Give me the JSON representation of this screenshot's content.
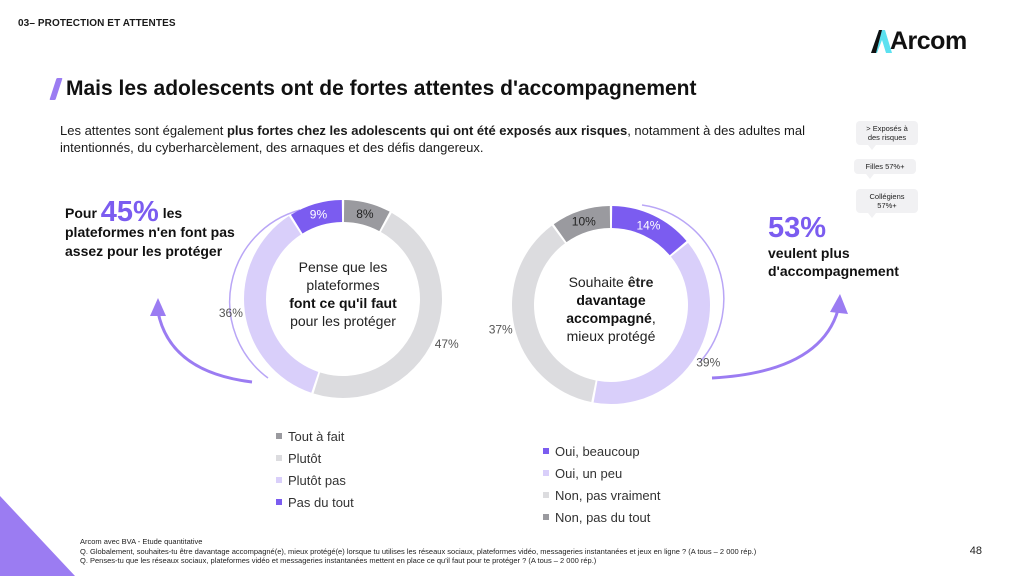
{
  "section_label": "03– PROTECTION ET ATTENTES",
  "logo_text": "Arcom",
  "title": "Mais les adolescents ont de fortes attentes d'accompagnement",
  "intro": {
    "part1": "Les attentes sont également ",
    "bold": "plus fortes chez les adolescents qui ont été exposés aux risques",
    "part2": ", notamment à des adultes mal intentionnés, du cyberharcèlement, des arnaques et des défis dangereux."
  },
  "bubbles": [
    {
      "line1": "> Exposés à",
      "line2": "des risques"
    },
    {
      "line1": "Filles 57%+",
      "line2": ""
    },
    {
      "line1": "Collégiens",
      "line2": "57%+"
    }
  ],
  "left_callout": {
    "prefix": "Pour ",
    "big": "45%",
    "suffix": " les plateformes n'en font pas assez pour les protéger"
  },
  "right_callout": {
    "big": "53%",
    "text": "veulent plus d'accompagnement"
  },
  "colors": {
    "dark_purple": "#7b5cf0",
    "light_purple": "#d9cffa",
    "dark_gray": "#9a9a9f",
    "light_gray": "#dcdcdf",
    "arrow": "#9b7cf2"
  },
  "chart_data": [
    {
      "type": "pie",
      "variant": "donut",
      "question": "Q. Penses-tu que les réseaux sociaux, plateformes vidéo et messageries instantanées mettent en place ce qu'il faut pour te protéger ?",
      "center": {
        "line1": "Pense que les",
        "line2": "plateformes",
        "bold": "font ce qu'il faut",
        "line4": "pour les protéger"
      },
      "slices": [
        {
          "label": "Tout à fait",
          "value": 8,
          "display": "8%",
          "color": "#9a9a9f",
          "label_side": "inside"
        },
        {
          "label": "Plutôt",
          "value": 47,
          "display": "47%",
          "color": "#dcdcdf",
          "label_side": "outside"
        },
        {
          "label": "Plutôt pas",
          "value": 36,
          "display": "36%",
          "color": "#d9cffa",
          "label_side": "outside"
        },
        {
          "label": "Pas du tout",
          "value": 9,
          "display": "9%",
          "color": "#7b5cf0",
          "label_side": "inside"
        }
      ],
      "legend": [
        {
          "label": "Tout à fait",
          "color": "#9a9a9f"
        },
        {
          "label": "Plutôt",
          "color": "#dcdcdf"
        },
        {
          "label": "Plutôt pas",
          "color": "#d9cffa"
        },
        {
          "label": "Pas du tout",
          "color": "#7b5cf0"
        }
      ]
    },
    {
      "type": "pie",
      "variant": "donut",
      "question": "Q. Globalement, souhaites-tu être davantage accompagné(e), mieux protégé(e) lorsque tu utilises les réseaux sociaux ?",
      "center": {
        "line1": "Souhaite ",
        "bold1": "être",
        "bold2": "davantage",
        "bold3": "accompagné",
        "line4": "mieux protégé"
      },
      "slices": [
        {
          "label": "Oui, beaucoup",
          "value": 14,
          "display": "14%",
          "color": "#7b5cf0",
          "label_side": "inside"
        },
        {
          "label": "Oui, un peu",
          "value": 39,
          "display": "39%",
          "color": "#d9cffa",
          "label_side": "outside"
        },
        {
          "label": "Non, pas vraiment",
          "value": 37,
          "display": "37%",
          "color": "#dcdcdf",
          "label_side": "outside"
        },
        {
          "label": "Non, pas du tout",
          "value": 10,
          "display": "10%",
          "color": "#9a9a9f",
          "label_side": "inside"
        }
      ],
      "legend": [
        {
          "label": "Oui, beaucoup",
          "color": "#7b5cf0"
        },
        {
          "label": "Oui, un peu",
          "color": "#d9cffa"
        },
        {
          "label": "Non, pas vraiment",
          "color": "#dcdcdf"
        },
        {
          "label": "Non, pas du tout",
          "color": "#9a9a9f"
        }
      ]
    }
  ],
  "source": {
    "line1": "Arcom avec BVA - Etude quantitative",
    "line2": "Q. Globalement, souhaites-tu être davantage accompagné(e), mieux protégé(e) lorsque tu utilises les réseaux sociaux, plateformes vidéo, messageries instantanées et jeux en ligne ? (A tous – 2 000 rép.)",
    "line3": "Q. Penses-tu que les réseaux sociaux, plateformes vidéo et messageries instantanées mettent en place ce qu'il faut pour te protéger ? (A tous – 2 000 rép.)"
  },
  "page_number": "48"
}
